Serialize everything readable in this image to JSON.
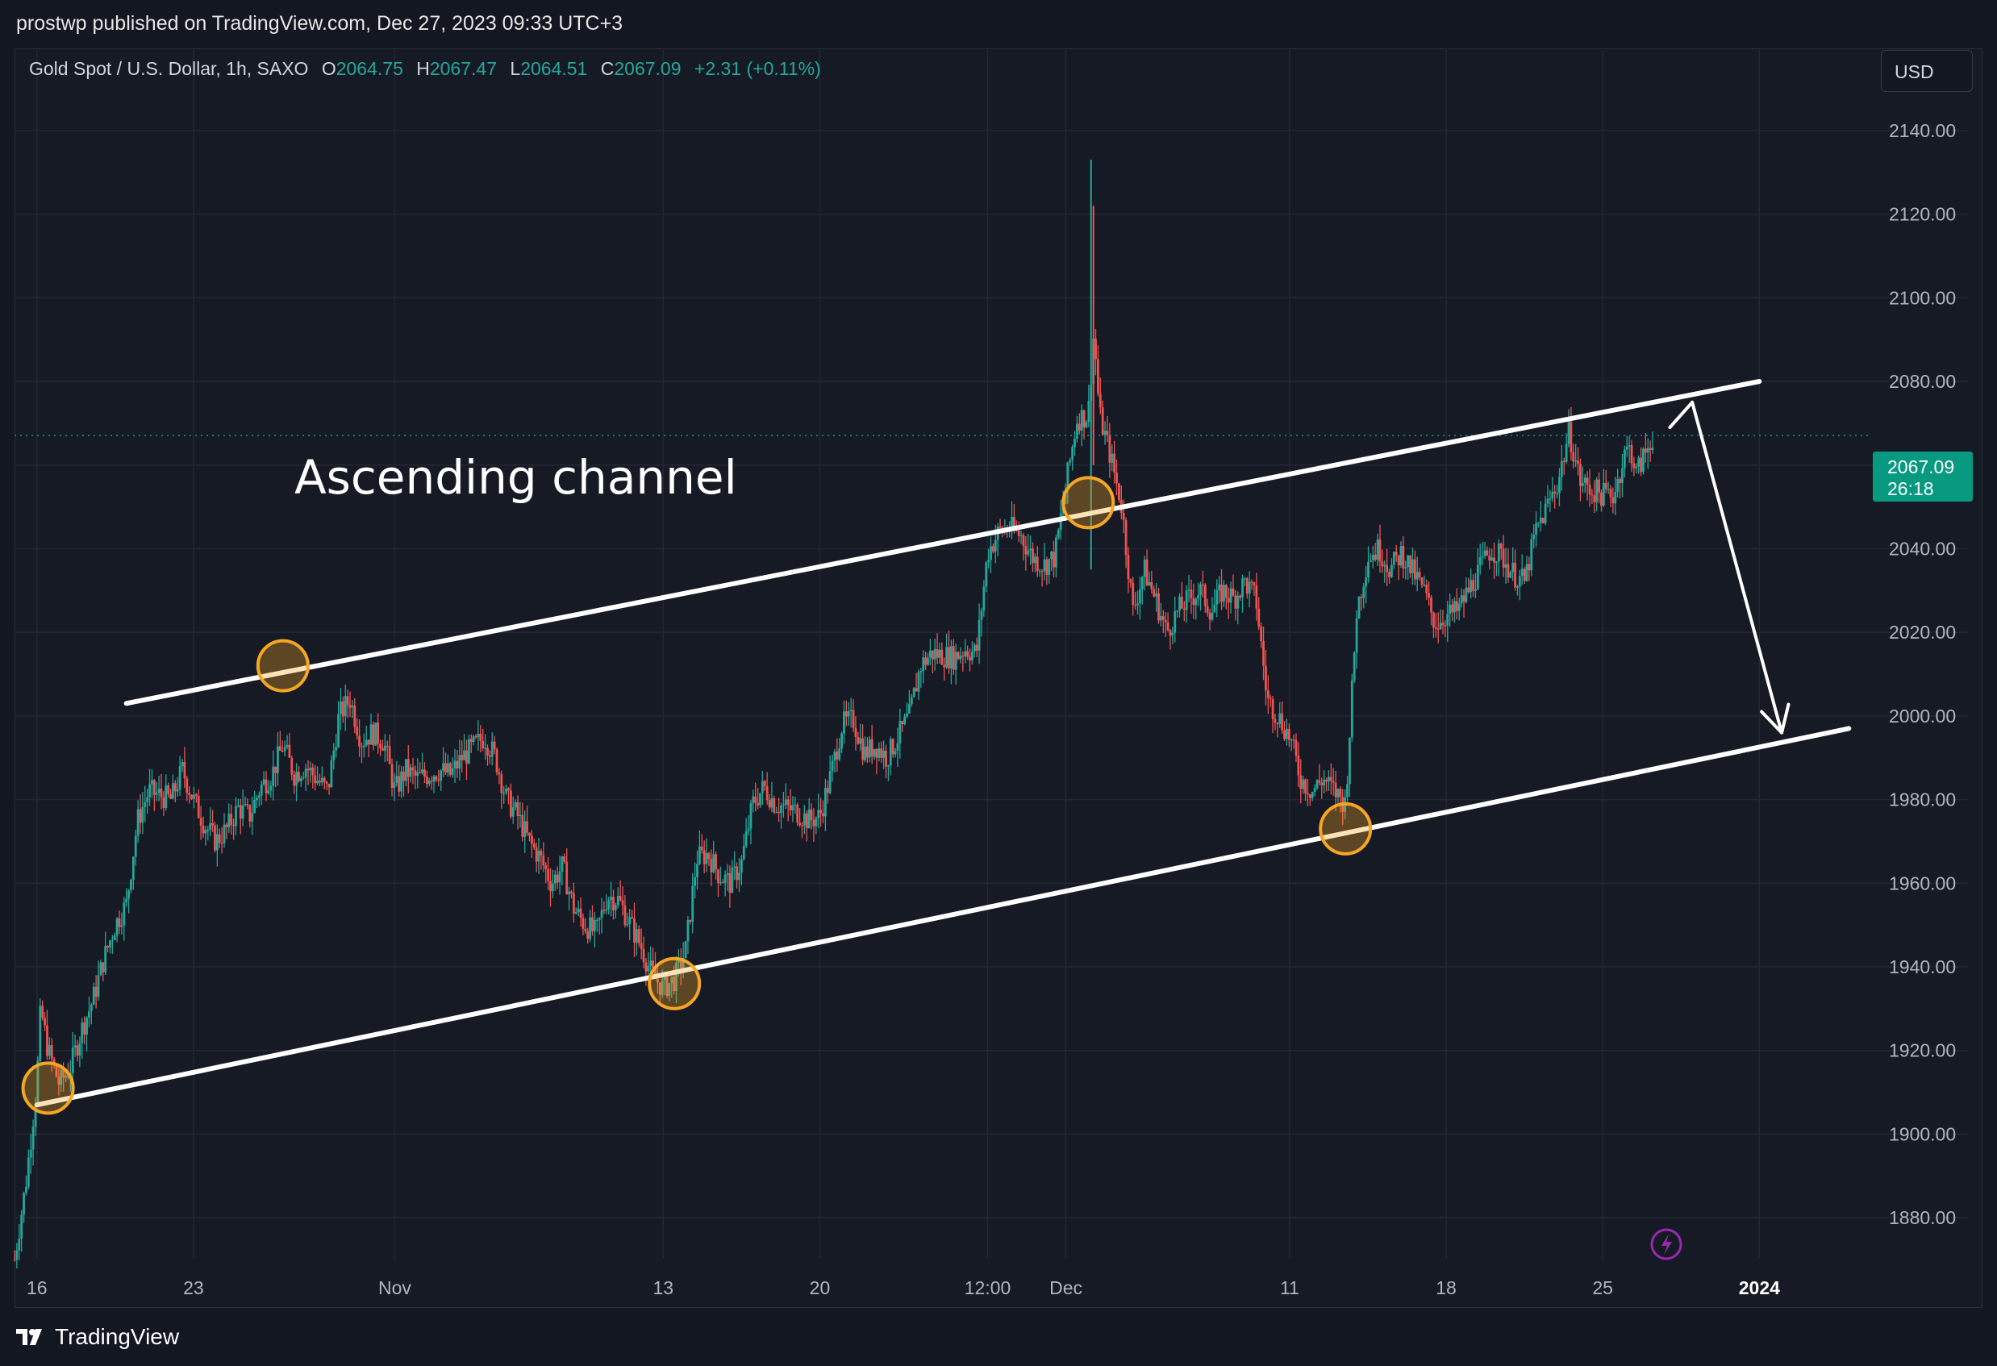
{
  "header": {
    "publisher": "prostwp published on TradingView.com, Dec 27, 2023 09:33 UTC+3"
  },
  "legend": {
    "symbol": "Gold Spot / U.S. Dollar, 1h, SAXO",
    "open_label": "O",
    "open": "2064.75",
    "high_label": "H",
    "high": "2067.47",
    "low_label": "L",
    "low": "2064.51",
    "close_label": "C",
    "close": "2067.09",
    "change": "+2.31 (+0.11%)"
  },
  "currency_button": "USD",
  "price_tag": {
    "price": "2067.09",
    "countdown": "26:18"
  },
  "brand": "TradingView",
  "colors": {
    "background": "#131722",
    "up": "#26a69a",
    "down": "#ef5350",
    "grid": "#232733",
    "axis_text": "#b2b5be",
    "marker": "#f5a623",
    "price_tag": "#089981",
    "lightning": "#9c27b0"
  },
  "chart_data": {
    "type": "candlestick",
    "title": "",
    "annotation": "Ascending channel",
    "ylim": [
      1870,
      2150
    ],
    "y_ticks": [
      1880,
      1900,
      1920,
      1940,
      1960,
      1980,
      2000,
      2020,
      2040,
      2060,
      2080,
      2100,
      2120,
      2140
    ],
    "y_tick_labels": [
      "1880.00",
      "1900.00",
      "1920.00",
      "1940.00",
      "1960.00",
      "1980.00",
      "2000.00",
      "2020.00",
      "2040.00",
      "2060.00",
      "2080.00",
      "2100.00",
      "2120.00",
      "2140.00"
    ],
    "x_ticks": [
      {
        "label": "16",
        "x": "2023-10-16"
      },
      {
        "label": "23",
        "x": "2023-10-23"
      },
      {
        "label": "Nov",
        "x": "2023-11-01"
      },
      {
        "label": "13",
        "x": "2023-11-13"
      },
      {
        "label": "20",
        "x": "2023-11-20"
      },
      {
        "label": "12:00",
        "x": "2023-11-27 12:00"
      },
      {
        "label": "Dec",
        "x": "2023-12-01"
      },
      {
        "label": "11",
        "x": "2023-12-11"
      },
      {
        "label": "18",
        "x": "2023-12-18"
      },
      {
        "label": "25",
        "x": "2023-12-25"
      },
      {
        "label": "2024",
        "x": "2024-01-01"
      }
    ],
    "x_range": [
      "2023-10-15",
      "2024-01-06"
    ],
    "last_price": 2067.09,
    "price_path": [
      [
        "2023-10-15",
        1870
      ],
      [
        "2023-10-15 12:00",
        1888
      ],
      [
        "2023-10-16",
        1912
      ],
      [
        "2023-10-16 04:00",
        1930
      ],
      [
        "2023-10-16 12:00",
        1920
      ],
      [
        "2023-10-17",
        1912
      ],
      [
        "2023-10-17 12:00",
        1916
      ],
      [
        "2023-10-18",
        1925
      ],
      [
        "2023-10-18 12:00",
        1932
      ],
      [
        "2023-10-19",
        1942
      ],
      [
        "2023-10-19 12:00",
        1950
      ],
      [
        "2023-10-20",
        1955
      ],
      [
        "2023-10-20 12:00",
        1975
      ],
      [
        "2023-10-21",
        1982
      ],
      [
        "2023-10-22",
        1980
      ],
      [
        "2023-10-22 12:00",
        1987
      ],
      [
        "2023-10-23",
        1980
      ],
      [
        "2023-10-23 12:00",
        1974
      ],
      [
        "2023-10-24",
        1970
      ],
      [
        "2023-10-24 12:00",
        1973
      ],
      [
        "2023-10-25",
        1978
      ],
      [
        "2023-10-25 12:00",
        1976
      ],
      [
        "2023-10-26",
        1983
      ],
      [
        "2023-10-26 12:00",
        1986
      ],
      [
        "2023-10-27",
        1993
      ],
      [
        "2023-10-27 12:00",
        1986
      ],
      [
        "2023-10-28",
        1988
      ],
      [
        "2023-10-29",
        1982
      ],
      [
        "2023-10-29 12:00",
        2000
      ],
      [
        "2023-10-30",
        2004
      ],
      [
        "2023-10-30 12:00",
        1994
      ],
      [
        "2023-10-31",
        1996
      ],
      [
        "2023-10-31 12:00",
        1994
      ],
      [
        "2023-11-01",
        1982
      ],
      [
        "2023-11-01 12:00",
        1987
      ],
      [
        "2023-11-02",
        1985
      ],
      [
        "2023-11-02 12:00",
        1986
      ],
      [
        "2023-11-03",
        1987
      ],
      [
        "2023-11-03 12:00",
        1986
      ],
      [
        "2023-11-04",
        1990
      ],
      [
        "2023-11-05",
        1995
      ],
      [
        "2023-11-05 12:00",
        1990
      ],
      [
        "2023-11-06",
        1980
      ],
      [
        "2023-11-06 12:00",
        1976
      ],
      [
        "2023-11-07",
        1970
      ],
      [
        "2023-11-07 12:00",
        1966
      ],
      [
        "2023-11-08",
        1960
      ],
      [
        "2023-11-08 12:00",
        1964
      ],
      [
        "2023-11-09",
        1954
      ],
      [
        "2023-11-09 12:00",
        1950
      ],
      [
        "2023-11-10",
        1948
      ],
      [
        "2023-11-10 12:00",
        1957
      ],
      [
        "2023-11-11",
        1956
      ],
      [
        "2023-11-12",
        1945
      ],
      [
        "2023-11-12 12:00",
        1938
      ],
      [
        "2023-11-13",
        1935
      ],
      [
        "2023-11-13 12:00",
        1937
      ],
      [
        "2023-11-14",
        1944
      ],
      [
        "2023-11-14 12:00",
        1966
      ],
      [
        "2023-11-15",
        1967
      ],
      [
        "2023-11-15 12:00",
        1962
      ],
      [
        "2023-11-16",
        1960
      ],
      [
        "2023-11-16 12:00",
        1965
      ],
      [
        "2023-11-17",
        1979
      ],
      [
        "2023-11-17 12:00",
        1983
      ],
      [
        "2023-11-18",
        1979
      ],
      [
        "2023-11-19",
        1977
      ],
      [
        "2023-11-19 12:00",
        1975
      ],
      [
        "2023-11-20",
        1976
      ],
      [
        "2023-11-20 12:00",
        1986
      ],
      [
        "2023-11-21",
        1998
      ],
      [
        "2023-11-21 12:00",
        1999
      ],
      [
        "2023-11-22",
        1991
      ],
      [
        "2023-11-22 12:00",
        1993
      ],
      [
        "2023-11-23",
        1990
      ],
      [
        "2023-11-23 12:00",
        1995
      ],
      [
        "2023-11-24",
        2000
      ],
      [
        "2023-11-24 12:00",
        2012
      ],
      [
        "2023-11-25",
        2015
      ],
      [
        "2023-11-26",
        2014
      ],
      [
        "2023-11-26 12:00",
        2016
      ],
      [
        "2023-11-27",
        2015
      ],
      [
        "2023-11-27 12:00",
        2039
      ],
      [
        "2023-11-28",
        2044
      ],
      [
        "2023-11-28 12:00",
        2045
      ],
      [
        "2023-11-29",
        2043
      ],
      [
        "2023-11-29 12:00",
        2038
      ],
      [
        "2023-11-30",
        2036
      ],
      [
        "2023-11-30 12:00",
        2038
      ],
      [
        "2023-12-01",
        2055
      ],
      [
        "2023-12-01 12:00",
        2071
      ],
      [
        "2023-12-02",
        2072
      ],
      [
        "2023-12-02 06:00",
        2092
      ],
      [
        "2023-12-02 12:00",
        2072
      ],
      [
        "2023-12-03",
        2062
      ],
      [
        "2023-12-03 12:00",
        2050
      ],
      [
        "2023-12-04",
        2025
      ],
      [
        "2023-12-04 12:00",
        2035
      ],
      [
        "2023-12-05",
        2028
      ],
      [
        "2023-12-05 12:00",
        2020
      ],
      [
        "2023-12-06",
        2025
      ],
      [
        "2023-12-06 12:00",
        2028
      ],
      [
        "2023-12-07",
        2030
      ],
      [
        "2023-12-07 12:00",
        2025
      ],
      [
        "2023-12-08",
        2030
      ],
      [
        "2023-12-08 12:00",
        2028
      ],
      [
        "2023-12-09",
        2032
      ],
      [
        "2023-12-09 12:00",
        2028
      ],
      [
        "2023-12-10",
        2004
      ],
      [
        "2023-12-10 12:00",
        2000
      ],
      [
        "2023-12-11",
        1995
      ],
      [
        "2023-12-11 12:00",
        1985
      ],
      [
        "2023-12-12",
        1982
      ],
      [
        "2023-12-12 12:00",
        1985
      ],
      [
        "2023-12-13",
        1982
      ],
      [
        "2023-12-13 12:00",
        1979
      ],
      [
        "2023-12-14",
        2025
      ],
      [
        "2023-12-14 12:00",
        2038
      ],
      [
        "2023-12-15",
        2040
      ],
      [
        "2023-12-15 12:00",
        2035
      ],
      [
        "2023-12-16",
        2039
      ],
      [
        "2023-12-17",
        2030
      ],
      [
        "2023-12-17 12:00",
        2022
      ],
      [
        "2023-12-18",
        2024
      ],
      [
        "2023-12-18 12:00",
        2025
      ],
      [
        "2023-12-19",
        2030
      ],
      [
        "2023-12-19 12:00",
        2035
      ],
      [
        "2023-12-20",
        2040
      ],
      [
        "2023-12-20 12:00",
        2038
      ],
      [
        "2023-12-21",
        2034
      ],
      [
        "2023-12-21 12:00",
        2032
      ],
      [
        "2023-12-22",
        2044
      ],
      [
        "2023-12-22 12:00",
        2050
      ],
      [
        "2023-12-23",
        2056
      ],
      [
        "2023-12-23 12:00",
        2068
      ],
      [
        "2023-12-24",
        2056
      ],
      [
        "2023-12-24 12:00",
        2054
      ],
      [
        "2023-12-25",
        2053
      ],
      [
        "2023-12-25 12:00",
        2053
      ],
      [
        "2023-12-26",
        2063
      ],
      [
        "2023-12-26 06:00",
        2064
      ],
      [
        "2023-12-26 12:00",
        2058
      ],
      [
        "2023-12-27",
        2064
      ],
      [
        "2023-12-27 06:00",
        2067.09
      ]
    ],
    "spikes": [
      [
        "2023-12-02 03:00",
        2035,
        2133
      ]
    ],
    "channel": {
      "upper": [
        [
          "2023-10-20",
          2003
        ],
        [
          "2024-01-01",
          2080
        ]
      ],
      "lower": [
        [
          "2023-10-16",
          1907
        ],
        [
          "2024-01-05",
          1997
        ]
      ]
    },
    "touch_markers": [
      [
        "2023-10-16 12:00",
        1911
      ],
      [
        "2023-10-27",
        2012
      ],
      [
        "2023-11-13 12:00",
        1936
      ],
      [
        "2023-12-02",
        2051
      ],
      [
        "2023-12-13 12:00",
        1973
      ]
    ],
    "projection_arrows": [
      [
        [
          "2023-12-28",
          2069
        ],
        [
          "2023-12-29",
          2075
        ]
      ],
      [
        [
          "2023-12-29",
          2075
        ],
        [
          "2024-01-02",
          1996
        ]
      ]
    ]
  }
}
